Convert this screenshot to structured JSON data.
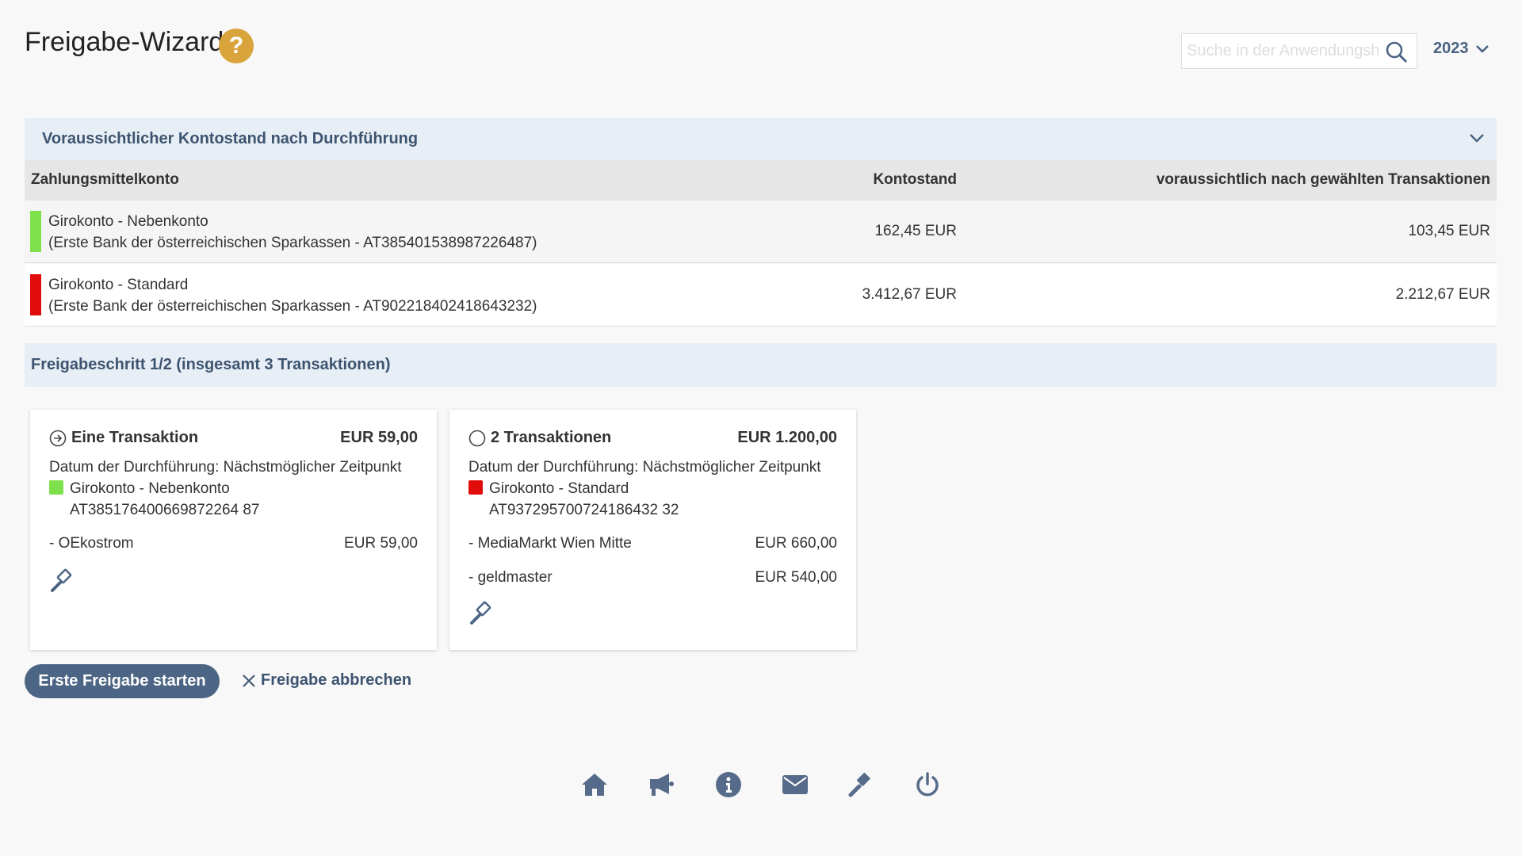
{
  "header": {
    "title": "Freigabe-Wizard",
    "help_icon": "question-circle-icon",
    "search_placeholder": "Suche in der Anwendungshilfe",
    "year": "2023"
  },
  "balance_section": {
    "title": "Voraussichtlicher Kontostand nach Durchführung",
    "columns": [
      "Zahlungsmittelkonto",
      "Kontostand",
      "voraussichtlich nach gewählten Transaktionen"
    ],
    "rows": [
      {
        "name": "Girokonto - Nebenkonto",
        "bank": "(Erste Bank der österreichischen Sparkassen - AT385401538987226487)",
        "balance": "162,45 EUR",
        "expected": "103,45 EUR",
        "color": "#7ee04a"
      },
      {
        "name": "Girokonto - Standard",
        "bank": "(Erste Bank der österreichischen Sparkassen - AT902218402418643232)",
        "balance": "3.412,67 EUR",
        "expected": "2.212,67 EUR",
        "color": "#e00b0b"
      }
    ]
  },
  "step": {
    "title": "Freigabeschritt 1/2 (insgesamt 3 Transaktionen)"
  },
  "cards": [
    {
      "title": "Eine Transaktion",
      "total": "EUR 59,00",
      "date": "Datum der Durchführung: Nächstmöglicher Zeitpunkt",
      "account": "Girokonto - Nebenkonto",
      "iban": "AT385176400669872264 87",
      "color": "#7ee04a",
      "items": [
        {
          "label": "- OEkostrom",
          "amount": "EUR 59,00"
        }
      ]
    },
    {
      "title": "2 Transaktionen",
      "total": "EUR 1.200,00",
      "date": "Datum der Durchführung: Nächstmöglicher Zeitpunkt",
      "account": "Girokonto - Standard",
      "iban": "AT937295700724186432 32",
      "color": "#e00b0b",
      "items": [
        {
          "label": "- MediaMarkt Wien Mitte",
          "amount": "EUR 660,00"
        },
        {
          "label": "- geldmaster",
          "amount": "EUR 540,00"
        }
      ]
    }
  ],
  "actions": {
    "start": "Erste Freigabe starten",
    "cancel": "Freigabe abbrechen"
  },
  "footer_icons": [
    "home-icon",
    "megaphone-icon",
    "info-icon",
    "mail-icon",
    "gavel-icon",
    "power-icon"
  ],
  "colors": {
    "accent": "#4d6584",
    "help": "#d9a43c"
  }
}
